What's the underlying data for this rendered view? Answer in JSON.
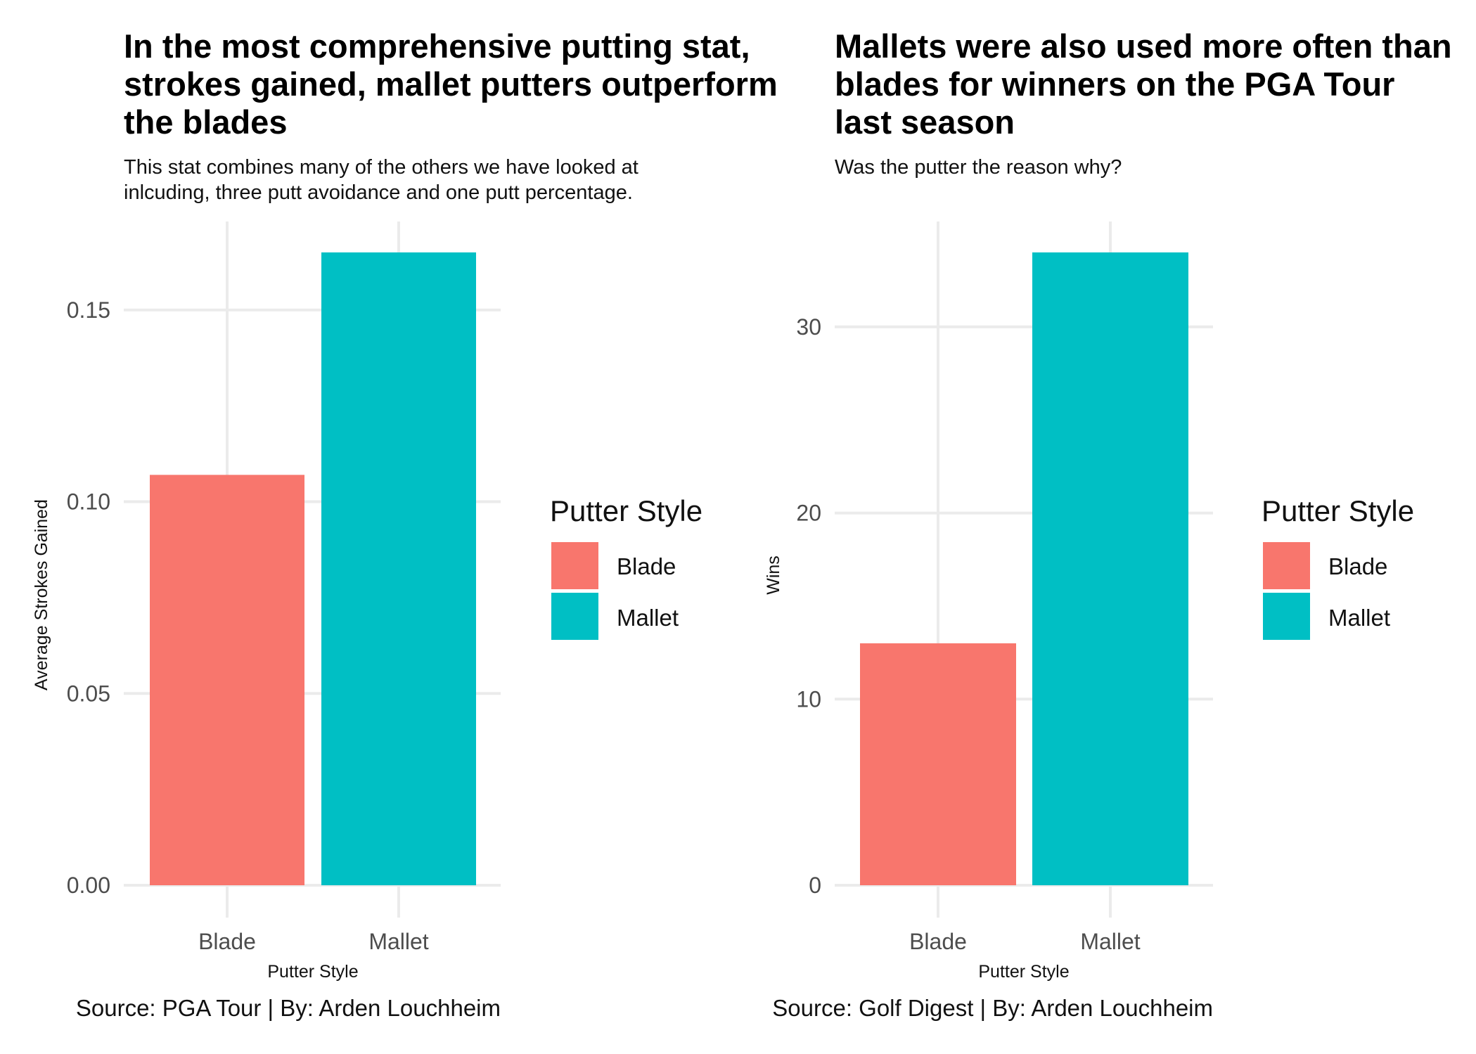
{
  "chart_data": [
    {
      "type": "bar",
      "title_lines": [
        "In the most comprehensive putting stat,",
        "strokes gained, mallet putters outperform",
        "the blades"
      ],
      "subtitle_lines": [
        "This stat combines many of the others we have looked at",
        "inlcuding, three putt avoidance and one putt percentage."
      ],
      "xlabel": "Putter Style",
      "ylabel": "Average Strokes Gained",
      "categories": [
        "Blade",
        "Mallet"
      ],
      "values": [
        0.107,
        0.165
      ],
      "ylim": [
        0,
        0.165
      ],
      "yticks": [
        0,
        0.05,
        0.1,
        0.15
      ],
      "ytick_labels": [
        "0.00",
        "0.05",
        "0.10",
        "0.15"
      ],
      "legend": {
        "title": "Putter Style",
        "placement": "right",
        "entries": [
          {
            "label": "Blade",
            "color": "#F8766D"
          },
          {
            "label": "Mallet",
            "color": "#00BFC4"
          }
        ]
      },
      "caption": "Source: PGA Tour | By: Arden Louchheim",
      "grid": true
    },
    {
      "type": "bar",
      "title_lines": [
        "Mallets were also used more often than",
        "blades for winners on the PGA Tour",
        "last season"
      ],
      "subtitle_lines": [
        "Was the putter the reason why?"
      ],
      "xlabel": "Putter Style",
      "ylabel": "Wins",
      "categories": [
        "Blade",
        "Mallet"
      ],
      "values": [
        13,
        34
      ],
      "ylim": [
        0,
        34
      ],
      "yticks": [
        0,
        10,
        20,
        30
      ],
      "ytick_labels": [
        "0",
        "10",
        "20",
        "30"
      ],
      "legend": {
        "title": "Putter Style",
        "placement": "right",
        "entries": [
          {
            "label": "Blade",
            "color": "#F8766D"
          },
          {
            "label": "Mallet",
            "color": "#00BFC4"
          }
        ]
      },
      "caption": "Source: Golf Digest | By: Arden Louchheim",
      "grid": true
    }
  ]
}
